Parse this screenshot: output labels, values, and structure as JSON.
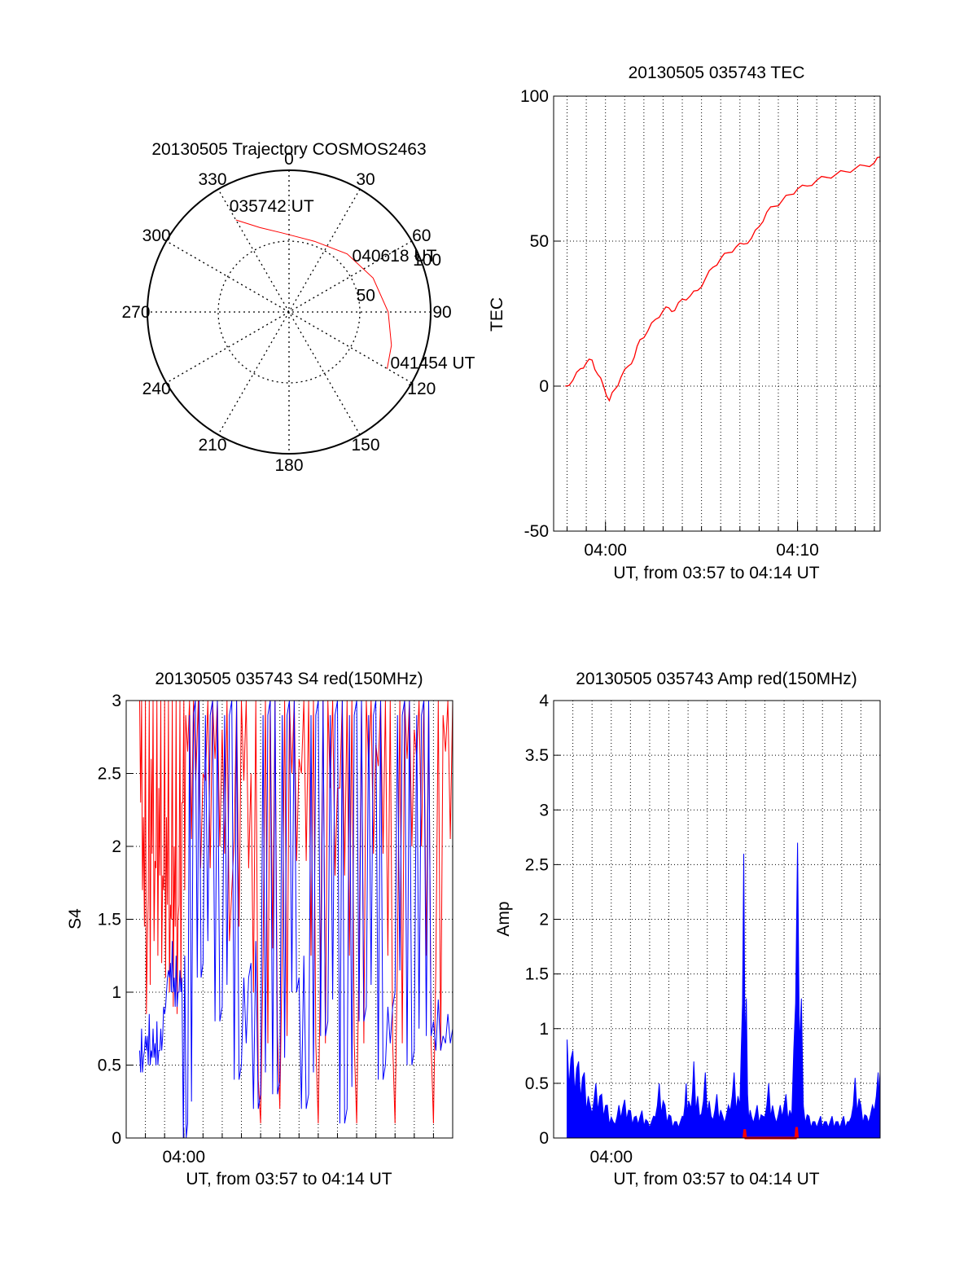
{
  "chart_data": [
    {
      "id": "trajectory",
      "type": "polar",
      "title": "20130505 Trajectory COSMOS2463",
      "azimuth_labels": [
        "0",
        "30",
        "60",
        "90",
        "120",
        "150",
        "180",
        "210",
        "240",
        "270",
        "300",
        "330"
      ],
      "radial_labels": [
        "50",
        "100"
      ],
      "radial_values": [
        50,
        100
      ],
      "annotations": [
        {
          "text": "035742 UT",
          "azimuth": 330,
          "zenith": 75
        },
        {
          "text": "040618 UT",
          "azimuth": 55,
          "zenith": 60
        },
        {
          "text": "041454 UT",
          "azimuth": 120,
          "zenith": 80
        }
      ],
      "trajectory": {
        "color": "#ff0000",
        "points": [
          [
            330,
            75
          ],
          [
            341,
            63
          ],
          [
            355,
            56
          ],
          [
            20,
            53
          ],
          [
            45,
            58
          ],
          [
            68,
            64
          ],
          [
            90,
            70
          ],
          [
            108,
            76
          ],
          [
            120,
            80
          ]
        ]
      }
    },
    {
      "id": "tec",
      "type": "line",
      "title": "20130505 035743 TEC",
      "ylabel": "TEC",
      "xlabel": "UT, from 03:57 to 04:14 UT",
      "xlim_minutes": [
        237.3,
        254.3
      ],
      "ylim": [
        -50,
        100
      ],
      "y_ticks": [
        "-50",
        "0",
        "50",
        "100"
      ],
      "x_ticks": [
        "04:00",
        "04:10"
      ],
      "grid": true,
      "series": [
        {
          "name": "TEC",
          "color": "#ff0000",
          "x": [
            237.9,
            238.3,
            238.7,
            239.0,
            239.3,
            239.6,
            239.9,
            240.2,
            240.5,
            240.8,
            241.2,
            241.5,
            241.8,
            242.2,
            242.6,
            243.0,
            243.3,
            243.6,
            244.0,
            244.4,
            244.8,
            245.2,
            245.6,
            246.0,
            246.4,
            246.8,
            247.2,
            247.6,
            248.0,
            248.4,
            248.8,
            249.2,
            249.6,
            250.0,
            250.5,
            251.0,
            251.5,
            252.0,
            252.5,
            253.0,
            253.5,
            254.0,
            254.3
          ],
          "values": [
            0,
            2,
            6,
            8,
            9,
            4,
            0,
            -5,
            -1,
            3,
            7,
            10,
            16,
            19,
            23,
            26,
            27,
            26,
            30,
            31,
            33,
            37,
            41,
            44,
            46,
            48,
            49,
            51,
            55,
            60,
            62,
            64,
            66,
            68,
            69,
            71,
            72,
            73,
            74,
            75,
            76,
            77,
            79
          ]
        }
      ]
    },
    {
      "id": "s4",
      "type": "line",
      "title": "20130505 035743 S4 red(150MHz)",
      "ylabel": "S4",
      "xlabel": "UT, from 03:57 to 04:14 UT",
      "xlim_minutes": [
        237.0,
        254.0
      ],
      "ylim": [
        0,
        3
      ],
      "y_ticks": [
        "0",
        "0.5",
        "1",
        "1.5",
        "2",
        "2.5",
        "3"
      ],
      "x_ticks": [
        "04:00"
      ],
      "grid": true,
      "series": [
        {
          "name": "S4 red (150MHz)",
          "color": "#ff0000",
          "x": [
            237.7,
            237.9,
            238.1,
            238.3,
            238.5,
            238.7,
            238.9,
            239.1,
            239.3,
            239.5,
            239.7,
            239.9,
            240.1,
            240.5,
            241.0,
            241.5,
            242.0,
            242.5,
            243.0,
            243.5,
            244.0,
            244.5,
            245.0,
            245.5,
            246.0,
            246.5,
            247.0,
            247.5,
            248.0,
            248.5,
            249.0,
            249.5,
            250.0,
            250.5,
            251.0,
            251.5,
            252.0,
            252.5,
            253.0,
            253.5,
            254.0
          ],
          "values": [
            3,
            2.2,
            1.3,
            2.6,
            1.9,
            2.4,
            1.8,
            2.2,
            1.6,
            2.0,
            1.5,
            2.3,
            2.9,
            3,
            2.5,
            3,
            2.8,
            1.7,
            3,
            2.5,
            0.1,
            3,
            0.2,
            3,
            2.6,
            3,
            0.1,
            3,
            2.4,
            3,
            0.1,
            3,
            2.7,
            3,
            0.1,
            3,
            2.8,
            3,
            0.1,
            2.9,
            3
          ]
        },
        {
          "name": "S4 blue",
          "color": "#0000ff",
          "x": [
            237.7,
            237.9,
            238.1,
            238.3,
            238.5,
            238.7,
            238.9,
            239.1,
            239.3,
            239.5,
            239.7,
            239.9,
            240.2,
            240.6,
            241.0,
            241.5,
            242.0,
            242.5,
            243.0,
            243.5,
            244.0,
            244.5,
            245.0,
            245.5,
            246.0,
            246.5,
            247.0,
            247.5,
            248.0,
            248.5,
            249.0,
            249.5,
            250.0,
            250.5,
            251.0,
            251.5,
            252.0,
            252.5,
            253.0,
            253.5,
            254.0
          ],
          "values": [
            0.6,
            0.55,
            0.7,
            0.6,
            0.65,
            0.6,
            0.7,
            1.0,
            1.2,
            1.1,
            1.0,
            1.1,
            0.1,
            3,
            1.2,
            3,
            0.9,
            3,
            0.5,
            1.2,
            0.3,
            3,
            0.4,
            3,
            1.1,
            0.3,
            3,
            0.8,
            3,
            0.2,
            3,
            0.9,
            3,
            0.5,
            1.0,
            3,
            0.6,
            3,
            0.8,
            0.7,
            0.75
          ]
        }
      ]
    },
    {
      "id": "amp",
      "type": "line",
      "title": "20130505 035743 Amp red(150MHz)",
      "ylabel": "Amp",
      "xlabel": "UT, from 03:57 to 04:14 UT",
      "xlim_minutes": [
        237.0,
        254.0
      ],
      "ylim": [
        0,
        4
      ],
      "y_ticks": [
        "0",
        "0.5",
        "1",
        "1.5",
        "2",
        "2.5",
        "3",
        "3.5",
        "4"
      ],
      "x_ticks": [
        "04:00"
      ],
      "grid": true,
      "series": [
        {
          "name": "Amp blue",
          "color": "#0000ff",
          "x": [
            237.7,
            238.0,
            238.3,
            238.6,
            238.9,
            239.2,
            239.5,
            239.8,
            240.1,
            240.4,
            240.7,
            241.0,
            241.3,
            241.6,
            241.9,
            242.2,
            242.5,
            242.8,
            243.1,
            243.4,
            243.7,
            243.9,
            244.1,
            244.3,
            244.6,
            244.9,
            245.2,
            245.5,
            245.8,
            246.1,
            246.4,
            246.7,
            246.9,
            247.1,
            247.3,
            247.6,
            247.9,
            248.2,
            248.5,
            248.8,
            249.1,
            249.4,
            249.7,
            250.0,
            250.3,
            250.6,
            250.9,
            251.2,
            251.5,
            251.8,
            252.1,
            252.4,
            252.7,
            253.0,
            253.3,
            253.6,
            253.9,
            254.0
          ],
          "values": [
            0.9,
            0.8,
            0.7,
            0.6,
            0.3,
            0.5,
            0.4,
            0.3,
            0.15,
            0.3,
            0.35,
            0.25,
            0.2,
            0.25,
            0.15,
            0.2,
            0.5,
            0.3,
            0.2,
            0.15,
            0.2,
            0.5,
            0.3,
            0.7,
            0.2,
            0.6,
            0.2,
            0.4,
            0.2,
            0.3,
            0.6,
            0.3,
            2.6,
            0.4,
            0.2,
            0.3,
            0.2,
            0.5,
            0.2,
            0.3,
            0.4,
            0.2,
            2.7,
            0.3,
            0.2,
            0.15,
            0.2,
            0.15,
            0.2,
            0.15,
            0.2,
            0.15,
            0.55,
            0.3,
            0.2,
            0.3,
            0.6,
            0.6
          ]
        },
        {
          "name": "Amp red",
          "color": "#ff0000",
          "x": [
            246.9,
            246.95,
            247.0,
            249.6,
            249.65,
            249.7
          ],
          "values": [
            0,
            0.08,
            0,
            0,
            0.1,
            0
          ]
        }
      ]
    }
  ]
}
